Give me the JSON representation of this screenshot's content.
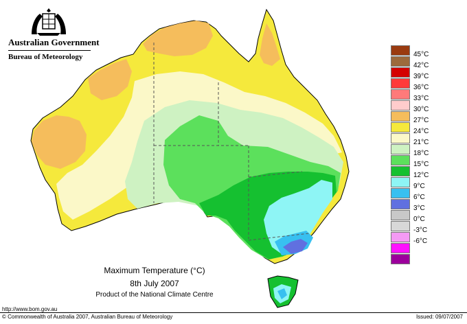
{
  "header": {
    "government": "Australian Government",
    "bureau": "Bureau of Meteorology"
  },
  "title": {
    "line1": "Maximum Temperature (°C)",
    "line2": "8th July 2007",
    "line3": "Product of the National Climate Centre"
  },
  "footer": {
    "url": "http://www.bom.gov.au",
    "copyright": "© Commonwealth of Australia 2007, Australian Bureau of Meteorology",
    "issued": "Issued: 09/07/2007"
  },
  "legend": {
    "items": [
      {
        "label": "45°C",
        "color": "#9a3b10"
      },
      {
        "label": "42°C",
        "color": "#9c6a3c"
      },
      {
        "label": "39°C",
        "color": "#d40000"
      },
      {
        "label": "36°C",
        "color": "#ff3a3a"
      },
      {
        "label": "33°C",
        "color": "#ff7a7a"
      },
      {
        "label": "30°C",
        "color": "#ffcccc"
      },
      {
        "label": "27°C",
        "color": "#f5bd5c"
      },
      {
        "label": "24°C",
        "color": "#f5e93c"
      },
      {
        "label": "21°C",
        "color": "#fbf8c8"
      },
      {
        "label": "18°C",
        "color": "#cef2c2"
      },
      {
        "label": "15°C",
        "color": "#5ce05c"
      },
      {
        "label": "12°C",
        "color": "#15c030"
      },
      {
        "label": "9°C",
        "color": "#8ef5f5"
      },
      {
        "label": "6°C",
        "color": "#38c0f0"
      },
      {
        "label": "3°C",
        "color": "#6070e0"
      },
      {
        "label": "0°C",
        "color": "#c8c8c8"
      },
      {
        "label": "-3°C",
        "color": "#d8d8d8"
      },
      {
        "label": "-6°C",
        "color": "#f49af4"
      },
      {
        "label": "",
        "color": "#ff10ff"
      },
      {
        "label": "",
        "color": "#9c009c"
      }
    ]
  },
  "map_colors": {
    "hot": "#f5bd5c",
    "warm": "#f5e93c",
    "mild": "#fbf8c8",
    "cool": "#cef2c2",
    "cooler": "#5ce05c",
    "cold": "#15c030",
    "colder": "#8ef5f5",
    "coldest": "#38c0f0",
    "alpine": "#6070e0"
  }
}
